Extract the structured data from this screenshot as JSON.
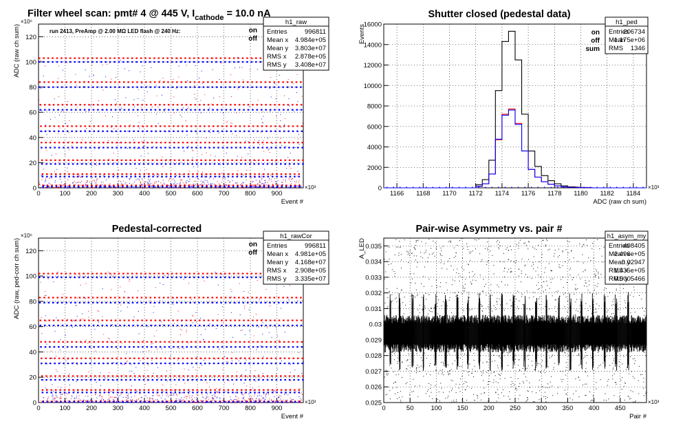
{
  "colors": {
    "on": "#ff0000",
    "off": "#0000ff",
    "sum": "#000000",
    "axis": "#000000",
    "grid": "#000000"
  },
  "chart_data": [
    {
      "type": "scatter",
      "title": {
        "main": "Filter wheel scan: pmt#   4 @   445 V, I",
        "sub": "cathode",
        "rest": " = 10.0 nA"
      },
      "annotation": "run 2413, PreAmp @ 2.00 MΩ   LED flash @  240 Hz:",
      "xlabel": "Event #",
      "ylabel": "ADC (raw ch sum)",
      "x_exponent": "×10³",
      "y_exponent": "×10⁶",
      "xlim": [
        0,
        1000
      ],
      "ylim": [
        0,
        130
      ],
      "xticks": [
        0,
        100,
        200,
        300,
        400,
        500,
        600,
        700,
        800,
        900
      ],
      "yticks": [
        0,
        20,
        40,
        60,
        80,
        100,
        120
      ],
      "grid": true,
      "legend": {
        "entries": [
          "on",
          "off"
        ],
        "placement": "top-right"
      },
      "series": [
        {
          "name": "on",
          "levels": [
            103,
            84,
            66,
            49,
            36,
            22,
            11,
            2
          ]
        },
        {
          "name": "off",
          "levels": [
            100,
            80,
            62,
            45,
            32,
            19,
            9,
            1
          ]
        }
      ],
      "stats": {
        "name": "h1_raw",
        "rows": [
          [
            "Entries",
            "996811"
          ],
          [
            "Mean x",
            "4.984e+05"
          ],
          [
            "Mean y",
            "3.803e+07"
          ],
          [
            "RMS x",
            "2.878e+05"
          ],
          [
            "RMS y",
            "3.408e+07"
          ]
        ]
      }
    },
    {
      "type": "line",
      "title": "Shutter closed (pedestal data)",
      "xlabel": "ADC (raw ch sum)",
      "ylabel": "Events",
      "x_exponent": "×10³",
      "xlim": [
        1165,
        1185
      ],
      "ylim": [
        0,
        16000
      ],
      "xticks": [
        1166,
        1168,
        1170,
        1172,
        1174,
        1176,
        1178,
        1180,
        1182,
        1184
      ],
      "yticks": [
        0,
        2000,
        4000,
        6000,
        8000,
        10000,
        12000,
        14000,
        16000
      ],
      "grid": true,
      "legend": {
        "entries": [
          "on",
          "off",
          "sum"
        ],
        "placement": "top-right"
      },
      "x": [
        1171.5,
        1172.0,
        1172.5,
        1173.0,
        1173.5,
        1174.0,
        1174.5,
        1175.0,
        1175.5,
        1176.0,
        1176.5,
        1177.0,
        1177.5,
        1178.0,
        1178.5,
        1179.0,
        1180.0,
        1181.0
      ],
      "series": [
        {
          "name": "sum",
          "values": [
            0,
            300,
            800,
            2700,
            9500,
            14300,
            15300,
            12500,
            7200,
            3600,
            2100,
            1200,
            700,
            400,
            200,
            100,
            40,
            0
          ]
        },
        {
          "name": "on",
          "values": [
            0,
            150,
            400,
            1350,
            4700,
            7200,
            7700,
            6300,
            3600,
            1800,
            1050,
            600,
            350,
            200,
            100,
            50,
            20,
            0
          ]
        },
        {
          "name": "off",
          "values": [
            0,
            150,
            400,
            1350,
            4750,
            7100,
            7600,
            6200,
            3600,
            1800,
            1050,
            600,
            350,
            200,
            100,
            50,
            20,
            0
          ]
        }
      ],
      "stats": {
        "name": "h1_ped",
        "rows": [
          [
            "Entries",
            "206734"
          ],
          [
            "Mean",
            "1.175e+06"
          ],
          [
            "RMS",
            "1346"
          ]
        ]
      }
    },
    {
      "type": "scatter",
      "title": "Pedestal-corrected",
      "xlabel": "Event #",
      "ylabel": "ADC (raw, ped-corr ch sum)",
      "x_exponent": "×10³",
      "y_exponent": "×10⁶",
      "xlim": [
        0,
        1000
      ],
      "ylim": [
        0,
        130
      ],
      "xticks": [
        0,
        100,
        200,
        300,
        400,
        500,
        600,
        700,
        800,
        900
      ],
      "yticks": [
        0,
        20,
        40,
        60,
        80,
        100,
        120
      ],
      "grid": true,
      "legend": {
        "entries": [
          "on",
          "off"
        ],
        "placement": "top-right"
      },
      "series": [
        {
          "name": "on",
          "levels": [
            102,
            83,
            65,
            48,
            35,
            21,
            10,
            1
          ]
        },
        {
          "name": "off",
          "levels": [
            99,
            79,
            61,
            44,
            31,
            18,
            8,
            0.5
          ]
        }
      ],
      "stats": {
        "name": "h1_rawCor",
        "rows": [
          [
            "Entries",
            "996811"
          ],
          [
            "Mean x",
            "4.981e+05"
          ],
          [
            "Mean y",
            "4.168e+07"
          ],
          [
            "RMS x",
            "2.908e+05"
          ],
          [
            "RMS y",
            "3.335e+07"
          ]
        ]
      }
    },
    {
      "type": "scatter",
      "title": "Pair-wise Asymmetry vs. pair #",
      "xlabel": "Pair #",
      "ylabel": "A_LED",
      "x_exponent": "×10³",
      "xlim": [
        0,
        500
      ],
      "ylim": [
        0.025,
        0.0355
      ],
      "xticks": [
        0,
        50,
        100,
        150,
        200,
        250,
        300,
        350,
        400,
        450
      ],
      "yticks": [
        0.025,
        0.026,
        0.027,
        0.028,
        0.029,
        0.03,
        0.031,
        0.032,
        0.033,
        0.034,
        0.035
      ],
      "grid": true,
      "band": {
        "center": 0.0294,
        "half_width": 0.0012
      },
      "spike_x": [
        12,
        30,
        55,
        75,
        98,
        118,
        140,
        160,
        182,
        203,
        225,
        247,
        268,
        290,
        310,
        333,
        355,
        376,
        398,
        420,
        442,
        465
      ],
      "stats": {
        "name": "h1_asym_my",
        "rows": [
          [
            "Entries",
            "498405"
          ],
          [
            "Mean x",
            "2.496e+05"
          ],
          [
            "Mean y",
            "0.02947"
          ],
          [
            "RMS x",
            "1.435e+05"
          ],
          [
            "RMS y",
            "0.0005466"
          ]
        ]
      }
    }
  ]
}
